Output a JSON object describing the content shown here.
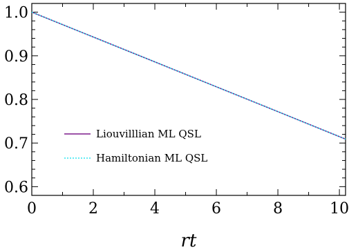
{
  "chart_data": {
    "type": "line",
    "title": "",
    "xlabel": "rt",
    "ylabel": "",
    "xlim": [
      0,
      10.2
    ],
    "ylim": [
      0.58,
      1.02
    ],
    "x_ticks": [
      0,
      2,
      4,
      6,
      8,
      10
    ],
    "x_tick_labels": [
      "0",
      "2",
      "4",
      "6",
      "8",
      "10"
    ],
    "y_ticks": [
      0.6,
      0.7,
      0.8,
      0.9,
      1.0
    ],
    "y_tick_labels": [
      "0.6",
      "0.7",
      "0.8",
      "0.9",
      "1.0"
    ],
    "grid": false,
    "legend_position": "left",
    "series": [
      {
        "name": "Liouvilllian ML QSL",
        "color": "#7b1a8c",
        "style": "solid",
        "x": [
          0,
          2,
          4,
          6,
          8,
          10.2
        ],
        "y": [
          1.0,
          0.943,
          0.886,
          0.829,
          0.772,
          0.709
        ]
      },
      {
        "name": "Hamiltonian ML QSL",
        "color": "#2ee6f0",
        "style": "dotted",
        "x": [
          0,
          2,
          4,
          6,
          8,
          10.2
        ],
        "y": [
          1.0,
          0.943,
          0.886,
          0.829,
          0.772,
          0.709
        ]
      }
    ]
  }
}
